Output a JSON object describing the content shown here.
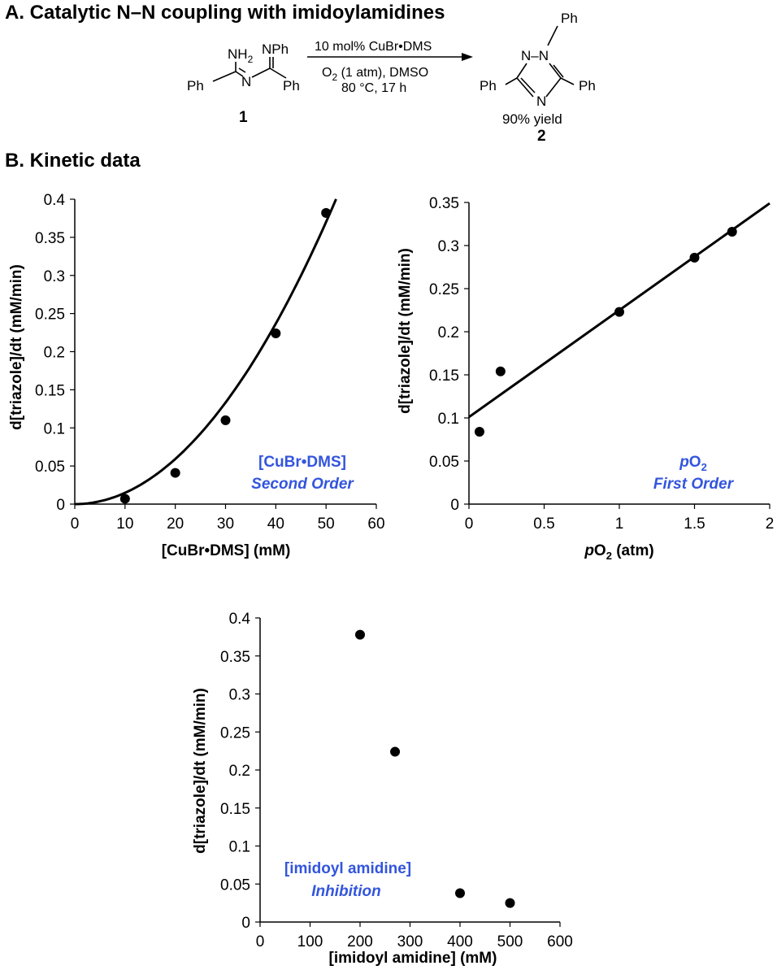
{
  "section_a": {
    "title": "A. Catalytic N–N coupling with imidoylamidines",
    "reactant": {
      "nh2": "NH",
      "nh2_sub": "2",
      "nph": "NPh",
      "ph_left": "Ph",
      "ph_right": "Ph",
      "n_center": "N",
      "number": "1"
    },
    "conditions": {
      "line1": "10 mol% CuBr•DMS",
      "line2_a": "O",
      "line2_sub": "2",
      "line2_b": " (1 atm), DMSO",
      "line3": "80 °C, 17 h"
    },
    "product": {
      "ph_top": "Ph",
      "ph_left": "Ph",
      "ph_right": "Ph",
      "n_ring_top": "N–N",
      "n_ring_bottom": "N",
      "yield": "90% yield",
      "number": "2"
    }
  },
  "section_b": {
    "title": "B. Kinetic data"
  },
  "chart_data": [
    {
      "type": "scatter",
      "xlabel": "[CuBr•DMS] (mM)",
      "ylabel": "d[triazole]/dt (mM/min)",
      "xlim": [
        0,
        60
      ],
      "ylim": [
        0,
        0.4
      ],
      "xticks": [
        "0",
        "10",
        "20",
        "30",
        "40",
        "50",
        "60"
      ],
      "yticks": [
        "0",
        "0.05",
        "0.1",
        "0.15",
        "0.2",
        "0.25",
        "0.3",
        "0.35",
        "0.4"
      ],
      "x": [
        10,
        20,
        30,
        40,
        50
      ],
      "y": [
        0.007,
        0.041,
        0.11,
        0.224,
        0.382
      ],
      "fit": {
        "kind": "quadratic",
        "coefficient": 0.000148,
        "x_range": [
          0,
          52
        ]
      },
      "annotation": [
        "[CuBr•DMS]",
        "Second Order"
      ]
    },
    {
      "type": "scatter",
      "xlabel_prefix": "p",
      "xlabel_main": "O",
      "xlabel_sub": "2",
      "xlabel_suffix": " (atm)",
      "ylabel": "d[triazole]/dt (mM/min)",
      "xlim": [
        0,
        2
      ],
      "ylim": [
        0,
        0.35
      ],
      "xticks": [
        "0",
        "0.5",
        "1",
        "1.5",
        "2"
      ],
      "yticks": [
        "0",
        "0.05",
        "0.1",
        "0.15",
        "0.2",
        "0.25",
        "0.3",
        "0.35"
      ],
      "x": [
        0.07,
        0.21,
        1.0,
        1.5,
        1.75
      ],
      "y": [
        0.084,
        0.154,
        0.223,
        0.286,
        0.316
      ],
      "fit": {
        "kind": "linear",
        "slope": 0.124,
        "intercept": 0.101,
        "x_range": [
          0,
          2
        ]
      },
      "annotation_a": [
        "p",
        "O",
        "2"
      ],
      "annotation_b": "First Order"
    },
    {
      "type": "scatter",
      "xlabel": "[imidoyl amidine] (mM)",
      "ylabel": "d[triazole]/dt (mM/min)",
      "xlim": [
        0,
        600
      ],
      "ylim": [
        0,
        0.4
      ],
      "xticks": [
        "0",
        "100",
        "200",
        "300",
        "400",
        "500",
        "600"
      ],
      "yticks": [
        "0",
        "0.05",
        "0.1",
        "0.15",
        "0.2",
        "0.25",
        "0.3",
        "0.35",
        "0.4"
      ],
      "x": [
        200,
        270,
        400,
        500
      ],
      "y": [
        0.378,
        0.224,
        0.038,
        0.025
      ],
      "annotation": [
        "[imidoyl amidine]",
        "Inhibition"
      ]
    }
  ]
}
